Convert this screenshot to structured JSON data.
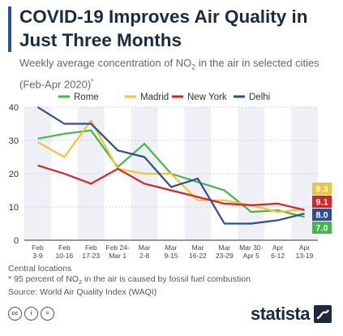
{
  "header": {
    "title": "COVID-19 Improves Air Quality in Just Three Months",
    "subtitle_pre": "Weekly average concentration of NO",
    "subtitle_sub": "2",
    "subtitle_post": " in the air in selected cities (Feb-Apr 2020)",
    "subtitle_note_mark": "*"
  },
  "footer": {
    "note_1": "Central locations",
    "note_2_pre": "* 95 percent of NO",
    "note_2_sub": "2",
    "note_2_post": " in the air is caused by fossil fuel combustion",
    "source": "Source: World Air Quality Index (WAQI)"
  },
  "branding": {
    "name": "statista",
    "icons": [
      "creative-commons-icon",
      "attribution-icon",
      "no-derivatives-icon"
    ],
    "icon_glyphs": [
      "cc",
      "i",
      "="
    ]
  },
  "chart_data": {
    "type": "line",
    "categories": [
      [
        "Feb",
        "3-9"
      ],
      [
        "Feb",
        "10-16"
      ],
      [
        "Feb",
        "17-23"
      ],
      [
        "Feb 24-",
        "Mar 1"
      ],
      [
        "Mar",
        "2-8"
      ],
      [
        "Mar",
        "9-15"
      ],
      [
        "Mar",
        "16-22"
      ],
      [
        "Mar",
        "23-29"
      ],
      [
        "Mar 30-",
        "Apr 5"
      ],
      [
        "Apr",
        "6-12"
      ],
      [
        "Apr",
        "13-19"
      ]
    ],
    "ylim": [
      0,
      40
    ],
    "yticks": [
      0,
      10,
      20,
      30,
      40
    ],
    "grid": true,
    "legend_position": "top",
    "series": [
      {
        "name": "Rome",
        "color": "#45b649",
        "values": [
          30.5,
          32,
          33,
          22,
          29,
          20,
          17.5,
          15,
          8.5,
          9,
          7.0
        ],
        "end_label": "7.0"
      },
      {
        "name": "Madrid",
        "color": "#f2c335",
        "values": [
          29.5,
          25,
          36,
          21.5,
          20,
          20,
          12,
          12,
          10.5,
          8.5,
          9.3
        ],
        "end_label": "9.3"
      },
      {
        "name": "New York",
        "color": "#d92228",
        "values": [
          22.5,
          20,
          17,
          21.5,
          17,
          15,
          13,
          11,
          10.5,
          11,
          9.1
        ],
        "end_label": "9.1"
      },
      {
        "name": "Delhi",
        "color": "#2b4f93",
        "values": [
          40,
          35,
          35,
          27,
          25,
          16,
          18.5,
          5,
          5,
          6,
          8.0
        ],
        "end_label": "8.0"
      }
    ]
  }
}
